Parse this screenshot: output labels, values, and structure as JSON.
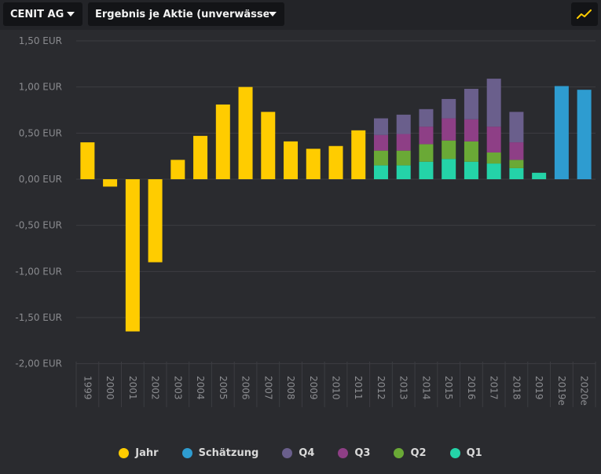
{
  "toolbar": {
    "company_label": "CENIT AG",
    "metric_label": "Ergebnis je Aktie (unverwässe...",
    "chart_toggle_icon": "line-chart-icon"
  },
  "colors": {
    "jahr": "#ffcc00",
    "schaetzung": "#2e9cd0",
    "q4": "#6a5f8c",
    "q3": "#8e3f86",
    "q2": "#6aa936",
    "q1": "#24d3a8"
  },
  "chart_data": {
    "type": "bar",
    "title": "",
    "xlabel": "",
    "ylabel": "",
    "ylim": [
      -2.0,
      1.5
    ],
    "y_ticks": [
      "1,50 EUR",
      "1,00 EUR",
      "0,50 EUR",
      "0,00 EUR",
      "-0,50 EUR",
      "-1,00 EUR",
      "-1,50 EUR",
      "-2,00 EUR"
    ],
    "y_tick_values": [
      1.5,
      1.0,
      0.5,
      0.0,
      -0.5,
      -1.0,
      -1.5,
      -2.0
    ],
    "grid": true,
    "legend_position": "bottom",
    "categories": [
      "1999",
      "2000",
      "2001",
      "2002",
      "2003",
      "2004",
      "2005",
      "2006",
      "2007",
      "2008",
      "2009",
      "2010",
      "2011",
      "2012",
      "2013",
      "2014",
      "2015",
      "2016",
      "2017",
      "2018",
      "2019",
      "2019e",
      "2020e"
    ],
    "series": [
      {
        "name": "Jahr",
        "key": "jahr",
        "values": [
          0.4,
          -0.08,
          -1.65,
          -0.9,
          0.21,
          0.47,
          0.81,
          1.0,
          0.73,
          0.41,
          0.33,
          0.36,
          0.53,
          null,
          null,
          null,
          null,
          null,
          null,
          null,
          null,
          null,
          null
        ]
      },
      {
        "name": "Schätzung",
        "key": "schaetzung",
        "values": [
          null,
          null,
          null,
          null,
          null,
          null,
          null,
          null,
          null,
          null,
          null,
          null,
          null,
          null,
          null,
          null,
          null,
          null,
          null,
          null,
          null,
          1.01,
          0.97
        ]
      },
      {
        "name": "Q4",
        "key": "q4",
        "values": [
          null,
          null,
          null,
          null,
          null,
          null,
          null,
          null,
          null,
          null,
          null,
          null,
          null,
          0.18,
          0.21,
          0.19,
          0.21,
          0.33,
          0.52,
          0.33,
          null,
          null,
          null
        ]
      },
      {
        "name": "Q3",
        "key": "q3",
        "values": [
          null,
          null,
          null,
          null,
          null,
          null,
          null,
          null,
          null,
          null,
          null,
          null,
          null,
          0.17,
          0.18,
          0.19,
          0.24,
          0.24,
          0.28,
          0.19,
          null,
          null,
          null
        ]
      },
      {
        "name": "Q2",
        "key": "q2",
        "values": [
          null,
          null,
          null,
          null,
          null,
          null,
          null,
          null,
          null,
          null,
          null,
          null,
          null,
          0.16,
          0.16,
          0.19,
          0.2,
          0.22,
          0.12,
          0.09,
          null,
          null,
          null
        ]
      },
      {
        "name": "Q1",
        "key": "q1",
        "values": [
          null,
          null,
          null,
          null,
          null,
          null,
          null,
          null,
          null,
          null,
          null,
          null,
          null,
          0.15,
          0.15,
          0.19,
          0.22,
          0.19,
          0.17,
          0.12,
          0.07,
          null,
          null
        ]
      }
    ]
  }
}
